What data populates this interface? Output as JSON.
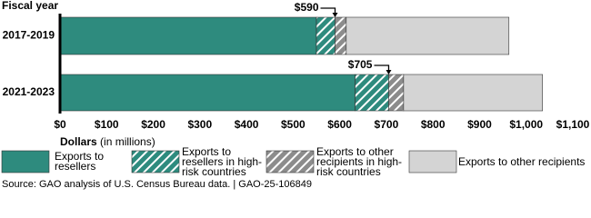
{
  "chart_data": {
    "type": "stacked-bar-horizontal",
    "y_title": "Fiscal year",
    "x_label": "Dollars",
    "x_label_unit": "(in millions)",
    "source": "Source: GAO analysis of U.S. Census Bureau data.  |  GAO-25-106849",
    "categories": [
      "2017-2019",
      "2021-2023"
    ],
    "series": [
      {
        "name": "Exports to resellers",
        "color": "#2e8b7e",
        "pattern": "solid",
        "values": [
          550,
          633
        ]
      },
      {
        "name": "Exports to resellers in high-risk countries",
        "color": "#2e8b7e",
        "pattern": "hatch",
        "values": [
          40,
          72
        ]
      },
      {
        "name": "Exports to other recipients in high-risk countries",
        "color": "#8c8c8c",
        "pattern": "hatch",
        "values": [
          24,
          32
        ]
      },
      {
        "name": "Exports to other recipients",
        "color": "#d4d4d4",
        "pattern": "solid",
        "values": [
          349,
          298
        ]
      }
    ],
    "annotations": [
      {
        "category": 0,
        "value": 590,
        "label": "$590"
      },
      {
        "category": 1,
        "value": 705,
        "label": "$705"
      }
    ],
    "xlim": [
      0,
      1100
    ],
    "xticks": [
      {
        "value": 0,
        "label": "$0"
      },
      {
        "value": 100,
        "label": "$100"
      },
      {
        "value": 200,
        "label": "$200"
      },
      {
        "value": 300,
        "label": "$300"
      },
      {
        "value": 400,
        "label": "$400"
      },
      {
        "value": 500,
        "label": "$500"
      },
      {
        "value": 600,
        "label": "$600"
      },
      {
        "value": 700,
        "label": "$700"
      },
      {
        "value": 800,
        "label": "$800"
      },
      {
        "value": 900,
        "label": "$900"
      },
      {
        "value": 1000,
        "label": "$1,000"
      },
      {
        "value": 1100,
        "label": "$1,100"
      }
    ]
  }
}
